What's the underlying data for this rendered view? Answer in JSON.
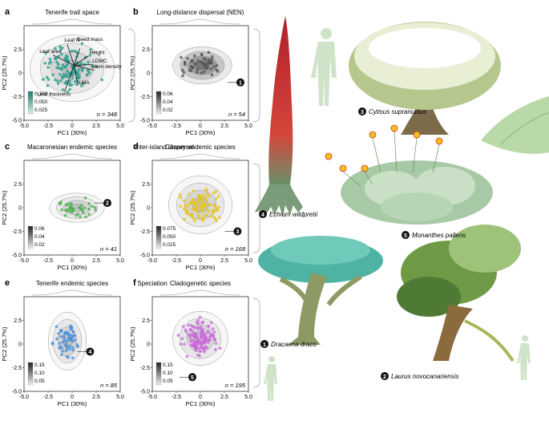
{
  "figure": {
    "section_labels": {
      "inter_island": "Inter-island dispersal",
      "speciation": "Speciation"
    },
    "axes": {
      "xlabel": "PC1 (30%)",
      "ylabel": "PC2 (25.7%)",
      "xticks": [
        "-5.0",
        "-2.5",
        "0",
        "2.5",
        "5.0"
      ],
      "yticks": [
        "2.5",
        "0",
        "-2.5",
        "-5.0"
      ]
    },
    "panels": [
      {
        "letter": "a",
        "title": "Tenerife trait space",
        "n": "n = 348",
        "color": "#2a9d8f",
        "legend": [
          "0.100",
          "0.050",
          "0.025"
        ],
        "marker": ""
      },
      {
        "letter": "b",
        "title": "Long-distance dispersal (NEN)",
        "n": "n = 54",
        "color": "#555555",
        "legend": [
          "0.06",
          "0.04",
          "0.02"
        ],
        "marker": "1"
      },
      {
        "letter": "c",
        "title": "Macaronesian endemic species",
        "n": "n = 41",
        "color": "#4caf50",
        "legend": [
          "0.06",
          "0.04",
          "0.02"
        ],
        "marker": "2"
      },
      {
        "letter": "d",
        "title": "Canary endemic species",
        "n": "n = 168",
        "color": "#e6c619",
        "legend": [
          "0.075",
          "0.050",
          "0.025"
        ],
        "marker": "3"
      },
      {
        "letter": "e",
        "title": "Tenerife endemic species",
        "n": "n = 85",
        "color": "#4a90d9",
        "legend": [
          "0.15",
          "0.10",
          "0.05"
        ],
        "marker": "4"
      },
      {
        "letter": "f",
        "title": "Cladogenetic species",
        "n": "n = 195",
        "color": "#cc66dd",
        "legend": [
          "0.15",
          "0.10",
          "0.05"
        ],
        "marker": "5"
      }
    ],
    "vectors": [
      "Leaf N",
      "Seed mass",
      "Height",
      "Leaf area",
      "LDMC",
      "Stem density",
      "LMA",
      "Leaf thickness"
    ],
    "species": [
      {
        "num": "1",
        "name": "Dracaena draco"
      },
      {
        "num": "2",
        "name": "Laurus novocanariensis"
      },
      {
        "num": "3",
        "name": "Cytisus supranubius"
      },
      {
        "num": "4",
        "name": "Echium wildpretii"
      },
      {
        "num": "5",
        "name": "Monanthes pallens"
      }
    ]
  }
}
